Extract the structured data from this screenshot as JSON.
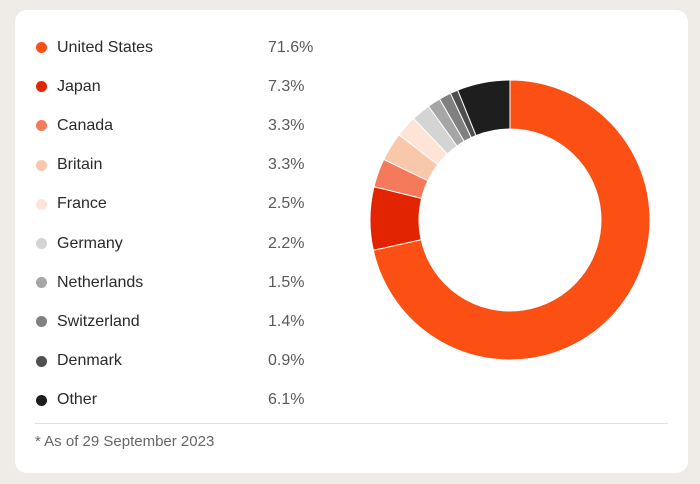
{
  "chart_data": {
    "type": "pie",
    "categories": [
      "United States",
      "Japan",
      "Canada",
      "Britain",
      "France",
      "Germany",
      "Netherlands",
      "Switzerland",
      "Denmark",
      "Other"
    ],
    "values": [
      71.6,
      7.3,
      3.3,
      3.3,
      2.5,
      2.2,
      1.5,
      1.4,
      0.9,
      6.1
    ],
    "value_labels": [
      "71.6%",
      "7.3%",
      "3.3%",
      "3.3%",
      "2.5%",
      "2.2%",
      "1.5%",
      "1.4%",
      "0.9%",
      "6.1%"
    ],
    "colors": [
      "#fb4f14",
      "#e32400",
      "#f57a5b",
      "#f9c8aa",
      "#fde4d6",
      "#d4d4d4",
      "#a6a6a6",
      "#808080",
      "#4f4f4f",
      "#1e1e1e"
    ],
    "style": "donut",
    "legend_position": "left",
    "footnote": "* As of 29 September 2023"
  }
}
